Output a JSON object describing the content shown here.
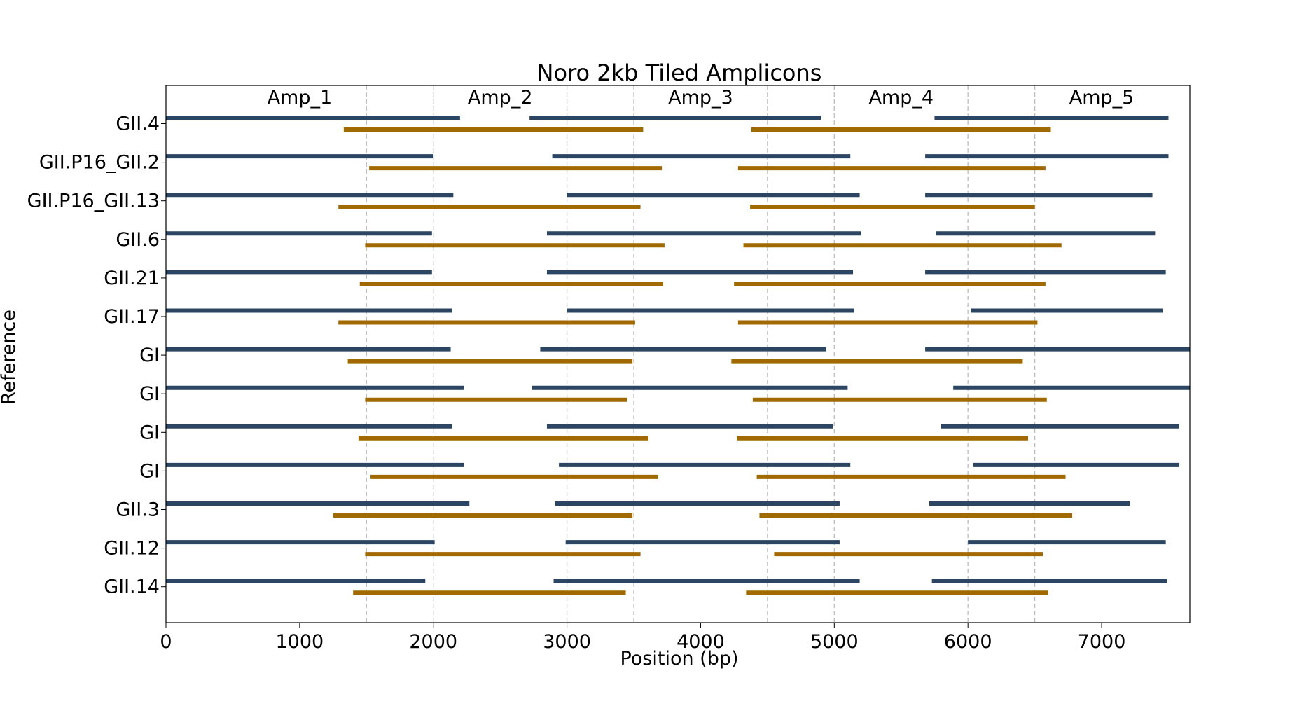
{
  "chart_data": {
    "type": "bar",
    "title": "Noro 2kb Tiled Amplicons",
    "xlabel": "Position (bp)",
    "ylabel": "Reference",
    "xlim": [
      0,
      7660
    ],
    "xticks": [
      0,
      1000,
      2000,
      3000,
      4000,
      5000,
      6000,
      7000
    ],
    "x_tick_labels": [
      "0",
      "1000",
      "2000",
      "3000",
      "4000",
      "5000",
      "6000",
      "7000"
    ],
    "grid": "vertical dashed lines at 1500, 2000, 3000, 3500, 4500, 5000, 6000, 6500",
    "gridlines": [
      1500,
      2000,
      3000,
      3500,
      4500,
      5000,
      6000,
      6500
    ],
    "amplicon_labels": [
      {
        "label": "Amp_1",
        "x": 1000
      },
      {
        "label": "Amp_2",
        "x": 2500
      },
      {
        "label": "Amp_3",
        "x": 4000
      },
      {
        "label": "Amp_4",
        "x": 5500
      },
      {
        "label": "Amp_5",
        "x": 7000
      }
    ],
    "colors": {
      "odd_amplicons": "#2b4562",
      "even_amplicons": "#a06a00"
    },
    "references": [
      {
        "name": "GII.4",
        "odd": [
          [
            0,
            2200
          ],
          [
            2720,
            4900
          ],
          [
            5750,
            7500
          ]
        ],
        "even": [
          [
            1330,
            3570
          ],
          [
            4380,
            6620
          ]
        ]
      },
      {
        "name": "GII.P16_GII.2",
        "odd": [
          [
            0,
            2000
          ],
          [
            2890,
            5120
          ],
          [
            5680,
            7500
          ]
        ],
        "even": [
          [
            1520,
            3710
          ],
          [
            4280,
            6580
          ]
        ]
      },
      {
        "name": "GII.P16_GII.13",
        "odd": [
          [
            0,
            2150
          ],
          [
            3000,
            5190
          ],
          [
            5680,
            7380
          ]
        ],
        "even": [
          [
            1290,
            3550
          ],
          [
            4370,
            6500
          ]
        ]
      },
      {
        "name": "GII.6",
        "odd": [
          [
            0,
            1990
          ],
          [
            2850,
            5200
          ],
          [
            5760,
            7400
          ]
        ],
        "even": [
          [
            1490,
            3730
          ],
          [
            4320,
            6700
          ]
        ]
      },
      {
        "name": "GII.21",
        "odd": [
          [
            0,
            1990
          ],
          [
            2850,
            5140
          ],
          [
            5680,
            7480
          ]
        ],
        "even": [
          [
            1450,
            3720
          ],
          [
            4250,
            6580
          ]
        ]
      },
      {
        "name": "GII.17",
        "odd": [
          [
            0,
            2140
          ],
          [
            3000,
            5150
          ],
          [
            6020,
            7460
          ]
        ],
        "even": [
          [
            1290,
            3510
          ],
          [
            4280,
            6520
          ]
        ]
      },
      {
        "name": "GI",
        "odd": [
          [
            0,
            2130
          ],
          [
            2800,
            4940
          ],
          [
            5680,
            7660
          ]
        ],
        "even": [
          [
            1360,
            3490
          ],
          [
            4230,
            6410
          ]
        ]
      },
      {
        "name": "GI",
        "odd": [
          [
            0,
            2230
          ],
          [
            2740,
            5100
          ],
          [
            5890,
            7660
          ]
        ],
        "even": [
          [
            1490,
            3450
          ],
          [
            4390,
            6590
          ]
        ]
      },
      {
        "name": "GI",
        "odd": [
          [
            0,
            2140
          ],
          [
            2850,
            4990
          ],
          [
            5800,
            7580
          ]
        ],
        "even": [
          [
            1440,
            3610
          ],
          [
            4270,
            6450
          ]
        ]
      },
      {
        "name": "GI",
        "odd": [
          [
            0,
            2230
          ],
          [
            2940,
            5120
          ],
          [
            6040,
            7580
          ]
        ],
        "even": [
          [
            1530,
            3680
          ],
          [
            4420,
            6730
          ]
        ]
      },
      {
        "name": "GII.3",
        "odd": [
          [
            0,
            2270
          ],
          [
            2910,
            5040
          ],
          [
            5710,
            7210
          ]
        ],
        "even": [
          [
            1250,
            3490
          ],
          [
            4440,
            6780
          ]
        ]
      },
      {
        "name": "GII.12",
        "odd": [
          [
            0,
            2010
          ],
          [
            2990,
            5040
          ],
          [
            6000,
            7480
          ]
        ],
        "even": [
          [
            1490,
            3550
          ],
          [
            4550,
            6560
          ]
        ]
      },
      {
        "name": "GII.14",
        "odd": [
          [
            0,
            1940
          ],
          [
            2900,
            5190
          ],
          [
            5730,
            7490
          ]
        ],
        "even": [
          [
            1400,
            3440
          ],
          [
            4340,
            6600
          ]
        ]
      }
    ]
  }
}
